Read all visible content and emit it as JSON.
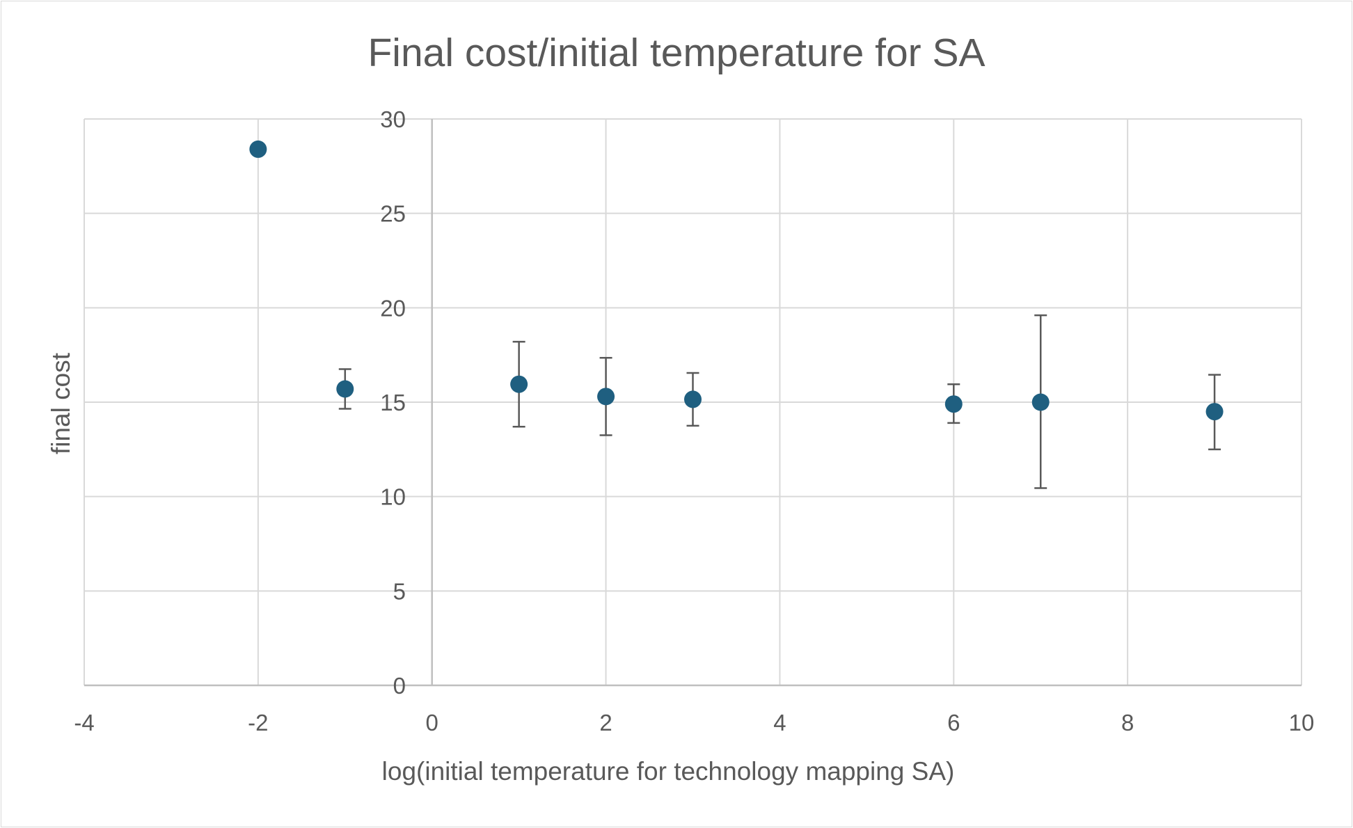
{
  "chart_data": {
    "type": "scatter",
    "title": "Final cost/initial temperature for SA",
    "xlabel": "log(initial temperature for technology mapping SA)",
    "ylabel": "final cost",
    "xlim": [
      -4,
      10
    ],
    "ylim": [
      0,
      30
    ],
    "x_ticks": [
      "-4",
      "-2",
      "0",
      "2",
      "4",
      "6",
      "8",
      "10"
    ],
    "y_ticks": [
      "0",
      "5",
      "10",
      "15",
      "20",
      "25",
      "30"
    ],
    "grid": true,
    "legend": "none",
    "marker_color": "#1f5f80",
    "error_bar_color": "#595959",
    "grid_color": "#d9d9d9",
    "points": [
      {
        "x": -2,
        "y": 28.4
      },
      {
        "x": -1,
        "y": 15.7,
        "y_low": 14.65,
        "y_high": 16.75
      },
      {
        "x": 1,
        "y": 15.95,
        "y_low": 13.7,
        "y_high": 18.2
      },
      {
        "x": 2,
        "y": 15.3,
        "y_low": 13.25,
        "y_high": 17.35
      },
      {
        "x": 3,
        "y": 15.15,
        "y_low": 13.75,
        "y_high": 16.55
      },
      {
        "x": 6,
        "y": 14.9,
        "y_low": 13.9,
        "y_high": 15.95
      },
      {
        "x": 7,
        "y": 15.0,
        "y_low": 10.45,
        "y_high": 19.6
      },
      {
        "x": 9,
        "y": 14.5,
        "y_low": 12.5,
        "y_high": 16.45
      }
    ]
  }
}
